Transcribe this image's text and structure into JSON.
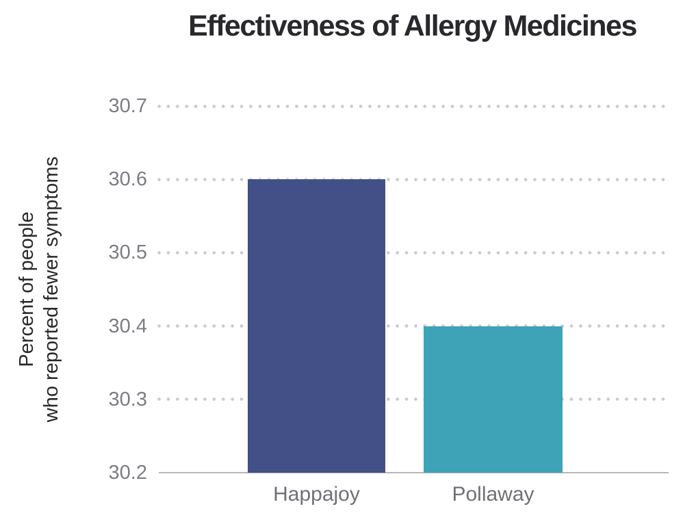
{
  "chart_data": {
    "type": "bar",
    "title": "Effectiveness of Allergy Medicines",
    "ylabel_line1": "Percent of people",
    "ylabel_line2": "who reported fewer symptoms",
    "xlabel": "",
    "categories": [
      "Happajoy",
      "Pollaway"
    ],
    "values": [
      30.6,
      30.4
    ],
    "bar_colors": [
      "#434f87",
      "#3fa3b8"
    ],
    "yticks": [
      30.7,
      30.6,
      30.5,
      30.4,
      30.3,
      30.2
    ],
    "ytick_labels": [
      "30.7",
      "30.6",
      "30.5",
      "30.4",
      "30.3",
      "30.2"
    ],
    "ylim": [
      30.2,
      30.7
    ],
    "grid": "horizontal-dotted",
    "legend_position": "none"
  },
  "colors": {
    "background": "#ffffff",
    "title_text": "#29282c",
    "axis_title_text": "#29282c",
    "tick_label_text": "#7d7b84",
    "category_label_text": "#716f76",
    "axis_line": "#b8b6ba",
    "grid_dot": "#cccbce",
    "bar_happajoy": "#434f87",
    "bar_pollaway": "#3fa3b8"
  }
}
